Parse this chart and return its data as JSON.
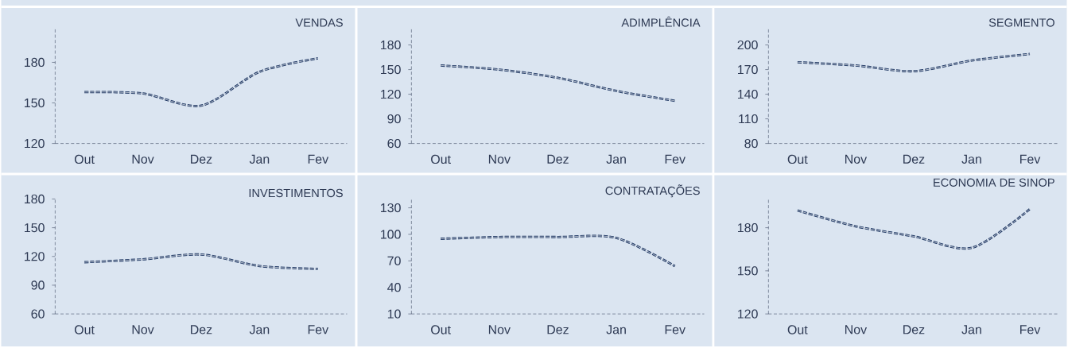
{
  "chart_data": [
    {
      "type": "line",
      "title": "VENDAS",
      "categories": [
        "Out",
        "Nov",
        "Dez",
        "Jan",
        "Fev"
      ],
      "values": [
        158,
        157,
        148,
        173,
        183
      ],
      "color": "#1f3864",
      "line_style": "dashed",
      "ylim": [
        120,
        205
      ],
      "yticks": [
        120,
        150,
        180
      ]
    },
    {
      "type": "line",
      "title": "ADIMPLÊNCIA",
      "categories": [
        "Out",
        "Nov",
        "Dez",
        "Jan",
        "Fev"
      ],
      "values": [
        155,
        150,
        140,
        124,
        112
      ],
      "color": "#1f3864",
      "line_style": "dashed",
      "ylim": [
        60,
        200
      ],
      "yticks": [
        60,
        90,
        120,
        150,
        180
      ]
    },
    {
      "type": "line",
      "title": "SEGMENTO",
      "categories": [
        "Out",
        "Nov",
        "Dez",
        "Jan",
        "Fev"
      ],
      "values": [
        179,
        175,
        168,
        181,
        189
      ],
      "color": "#1f3864",
      "line_style": "dashed",
      "ylim": [
        80,
        220
      ],
      "yticks": [
        80,
        110,
        140,
        170,
        200
      ]
    },
    {
      "type": "line",
      "title": "INVESTIMENTOS",
      "categories": [
        "Out",
        "Nov",
        "Dez",
        "Jan",
        "Fev"
      ],
      "values": [
        114,
        117,
        122,
        110,
        107
      ],
      "color": "#1f3864",
      "line_style": "dashed",
      "ylim": [
        60,
        180
      ],
      "yticks": [
        60,
        90,
        120,
        150,
        180
      ]
    },
    {
      "type": "line",
      "title": "CONTRATAÇÕES",
      "categories": [
        "Out",
        "Nov",
        "Dez",
        "Jan",
        "Fev"
      ],
      "values": [
        95,
        97,
        97,
        96,
        64
      ],
      "color": "#1f3864",
      "line_style": "dashed",
      "ylim": [
        10,
        140
      ],
      "yticks": [
        10,
        40,
        70,
        100,
        130
      ]
    },
    {
      "type": "line",
      "title": "ECONOMIA DE SINOP",
      "categories": [
        "Out",
        "Nov",
        "Dez",
        "Jan",
        "Fev"
      ],
      "values": [
        192,
        181,
        174,
        166,
        193
      ],
      "color": "#1f3864",
      "line_style": "dashed",
      "ylim": [
        120,
        200
      ],
      "yticks": [
        120,
        150,
        180
      ]
    }
  ]
}
